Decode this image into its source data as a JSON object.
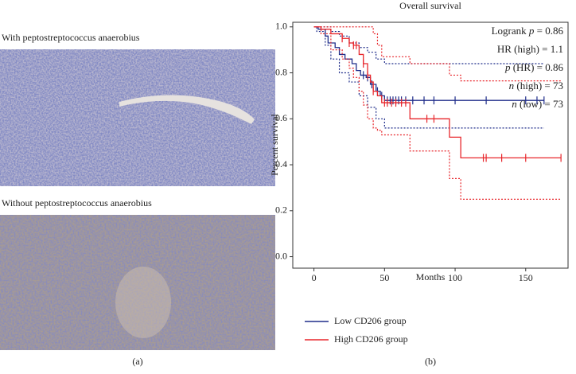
{
  "figure": {
    "panels": [
      {
        "caption": "With peptostreptococcus anaerobius"
      },
      {
        "caption": "Without peptostreptococcus anaerobius"
      }
    ],
    "labels": [
      "(a)",
      "(b)"
    ]
  },
  "chart_data": {
    "type": "step",
    "title": "Overall survival",
    "x_label": "Months",
    "y_label": "Percent survival",
    "xlim": [
      -15,
      180
    ],
    "ylim": [
      -0.05,
      1.02
    ],
    "xticks": [
      0,
      50,
      100,
      150
    ],
    "yticks": [
      {
        "value": 0,
        "label": "0.0"
      },
      0.2,
      0.4,
      0.6,
      0.8,
      {
        "value": 1,
        "label": "1.0"
      }
    ],
    "annotations": [
      [
        {
          "text": "Logrank "
        },
        {
          "text": "p",
          "italic": true
        },
        {
          "text": " = 0.86"
        }
      ],
      [
        {
          "text": "HR (high) = 1.1"
        }
      ],
      [
        {
          "text": "p",
          "italic": true
        },
        {
          "text": " (HR) = 0.86"
        }
      ],
      [
        {
          "text": "n",
          "italic": true
        },
        {
          "text": " (high) = 73"
        }
      ],
      [
        {
          "text": "n",
          "italic": true
        },
        {
          "text": " (low) = 73"
        }
      ]
    ],
    "series": [
      {
        "name": "Low CD206 group",
        "color": "#1f2d8a",
        "x": [
          0,
          3,
          8,
          10,
          15,
          18,
          22,
          27,
          30,
          33,
          37,
          40,
          44,
          47,
          50,
          163
        ],
        "values": [
          1.0,
          0.99,
          0.96,
          0.93,
          0.91,
          0.88,
          0.86,
          0.84,
          0.81,
          0.79,
          0.78,
          0.75,
          0.72,
          0.7,
          0.68,
          0.68
        ],
        "ci_x": [
          0,
          2,
          8,
          12,
          18,
          25,
          32,
          38,
          44,
          50,
          163
        ],
        "ci_upper": [
          1.0,
          1.0,
          1.0,
          0.98,
          0.96,
          0.93,
          0.91,
          0.89,
          0.86,
          0.84,
          0.84
        ],
        "ci_lower": [
          1.0,
          0.98,
          0.92,
          0.86,
          0.8,
          0.76,
          0.7,
          0.65,
          0.6,
          0.56,
          0.56
        ],
        "censored": [
          35,
          38,
          41,
          45,
          48,
          52,
          54,
          56,
          58,
          60,
          62,
          65,
          70,
          78,
          85,
          100,
          122,
          150,
          158,
          163
        ]
      },
      {
        "name": "High CD206 group",
        "color": "#e8262b",
        "x": [
          0,
          5,
          12,
          20,
          25,
          28,
          32,
          35,
          38,
          40,
          42,
          45,
          48,
          68,
          96,
          104,
          175
        ],
        "values": [
          1.0,
          0.99,
          0.97,
          0.95,
          0.93,
          0.92,
          0.88,
          0.84,
          0.79,
          0.76,
          0.72,
          0.7,
          0.67,
          0.6,
          0.52,
          0.43,
          0.43
        ],
        "ci_x": [
          0,
          5,
          12,
          20,
          25,
          28,
          32,
          35,
          38,
          42,
          45,
          48,
          68,
          96,
          104,
          175
        ],
        "ci_upper": [
          1.0,
          1.0,
          1.0,
          1.0,
          1.0,
          1.0,
          1.0,
          1.0,
          1.0,
          0.97,
          0.92,
          0.87,
          0.84,
          0.79,
          0.765,
          0.765
        ],
        "ci_lower": [
          1.0,
          0.97,
          0.9,
          0.86,
          0.82,
          0.78,
          0.72,
          0.66,
          0.6,
          0.56,
          0.55,
          0.53,
          0.46,
          0.34,
          0.25,
          0.25
        ],
        "censored": [
          20,
          25,
          28,
          30,
          35,
          38,
          42,
          50,
          52,
          55,
          58,
          62,
          65,
          80,
          85,
          120,
          122,
          133,
          150,
          175
        ]
      }
    ]
  }
}
